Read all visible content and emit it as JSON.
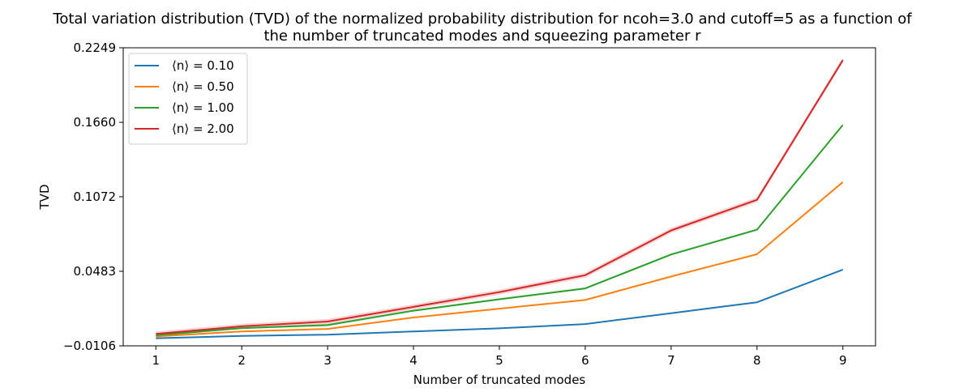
{
  "chart_data": {
    "type": "line",
    "title": "Total variation distribution (TVD) of the normalized probability distribution for ncoh=3.0 and cutoff=5 as a function of the number of truncated modes and squeezing parameter r",
    "title_lines": [
      "Total variation distribution (TVD) of the normalized probability distribution for ncoh=3.0 and cutoff=5 as a function of",
      "the number of truncated modes and squeezing parameter r"
    ],
    "xlabel": "Number of truncated modes",
    "ylabel": "TVD",
    "x": [
      1,
      2,
      3,
      4,
      5,
      6,
      7,
      8,
      9
    ],
    "x_tick_labels": [
      "1",
      "2",
      "3",
      "4",
      "5",
      "6",
      "7",
      "8",
      "9"
    ],
    "xlim": [
      0.62,
      9.38
    ],
    "ylim": [
      -0.0106,
      0.2249
    ],
    "y_ticks": [
      -0.0106,
      0.0483,
      0.1072,
      0.166,
      0.2249
    ],
    "y_tick_labels": [
      "−0.0106",
      "0.0483",
      "0.1072",
      "0.1660",
      "0.2249"
    ],
    "grid": false,
    "legend_position": "top-left",
    "series": [
      {
        "name": "⟨n⟩ =  0.10",
        "color": "#1f77b4",
        "values": [
          -0.0046,
          -0.0028,
          -0.0018,
          0.0008,
          0.0032,
          0.0066,
          0.0152,
          0.0238,
          0.0496
        ],
        "band": 0.0004
      },
      {
        "name": "⟨n⟩ =  0.50",
        "color": "#ff7f0e",
        "values": [
          -0.0032,
          0.0008,
          0.0028,
          0.0118,
          0.0188,
          0.0256,
          0.0442,
          0.0618,
          0.1188
        ],
        "band": 0.0005
      },
      {
        "name": "⟨n⟩ =  1.00",
        "color": "#2ca02c",
        "values": [
          -0.0022,
          0.0034,
          0.0058,
          0.0172,
          0.0262,
          0.0348,
          0.0616,
          0.0812,
          0.164
        ],
        "band": 0.0008
      },
      {
        "name": "⟨n⟩ =  2.00",
        "color": "#d62728",
        "values": [
          -0.0012,
          0.0048,
          0.0086,
          0.0202,
          0.0318,
          0.0452,
          0.0806,
          0.1048,
          0.2152
        ],
        "band": 0.002
      }
    ]
  }
}
